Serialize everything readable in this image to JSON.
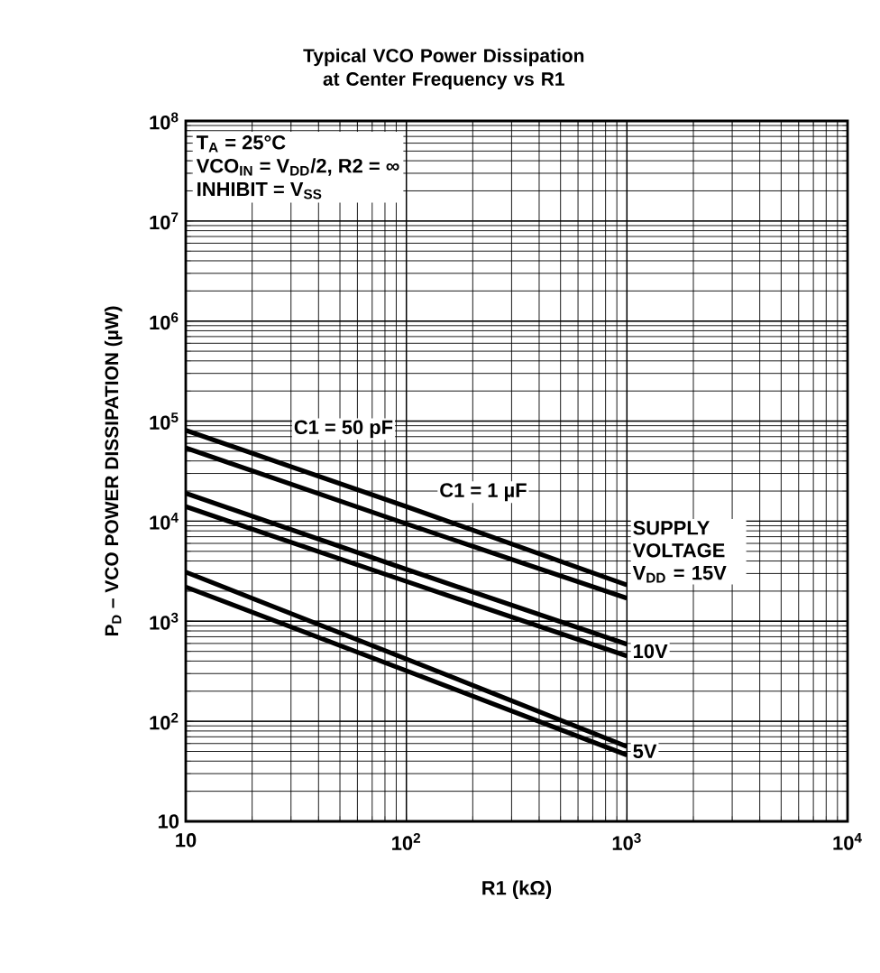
{
  "chart_data": {
    "type": "line",
    "title": "Typical VCO Power Dissipation at Center Frequency vs R1",
    "xlabel": "R1 (kΩ)",
    "ylabel": "P$_{D}$ – VCO POWER DISSIPATION (µW)",
    "log": "xy",
    "grid": true,
    "xlim": [
      10,
      10000
    ],
    "ylim": [
      10,
      100000000
    ],
    "xticks": [
      10,
      {
        "value": 100,
        "label": "10$^{2}$"
      },
      {
        "value": 1000,
        "label": "10$^{3}$"
      },
      {
        "value": 10000,
        "label": "10$^{4}$"
      }
    ],
    "yticks": [
      10,
      {
        "value": 100,
        "label": "10$^{2}$"
      },
      {
        "value": 1000,
        "label": "10$^{3}$"
      },
      {
        "value": 10000,
        "label": "10$^{4}$"
      },
      {
        "value": 100000,
        "label": "10$^{5}$"
      },
      {
        "value": 1000000,
        "label": "10$^{6}$"
      },
      {
        "value": 10000000,
        "label": "10$^{7}$"
      },
      {
        "value": 100000000,
        "label": "10$^{8}$"
      }
    ],
    "series": [
      {
        "color": "#000000",
        "x": [
          10,
          100,
          1000
        ],
        "values": [
          81000,
          14000,
          2300
        ]
      },
      {
        "color": "#000000",
        "x": [
          10,
          100,
          1000
        ],
        "values": [
          54000,
          9400,
          1700
        ]
      },
      {
        "color": "#000000",
        "x": [
          10,
          100,
          1000
        ],
        "values": [
          19000,
          3300,
          590
        ]
      },
      {
        "color": "#000000",
        "x": [
          10,
          100,
          1000
        ],
        "values": [
          14000,
          2500,
          450
        ]
      },
      {
        "color": "#000000",
        "x": [
          10,
          100,
          1000
        ],
        "values": [
          3100,
          420,
          56
        ]
      },
      {
        "color": "#000000",
        "x": [
          10,
          100,
          1000
        ],
        "values": [
          2200,
          320,
          46
        ]
      }
    ],
    "annotations": [
      "T$_{A}$ = 25°C",
      "VCO$_{IN}$ = V$_{DD}$/2, R2 = ∞",
      "INHIBIT = V$_{SS}$",
      "C1 = 50 pF",
      "C1 = 1 µF",
      "SUPPLY VOLTAGE V$_{DD}$ = 15V",
      "10V",
      "5V"
    ]
  }
}
